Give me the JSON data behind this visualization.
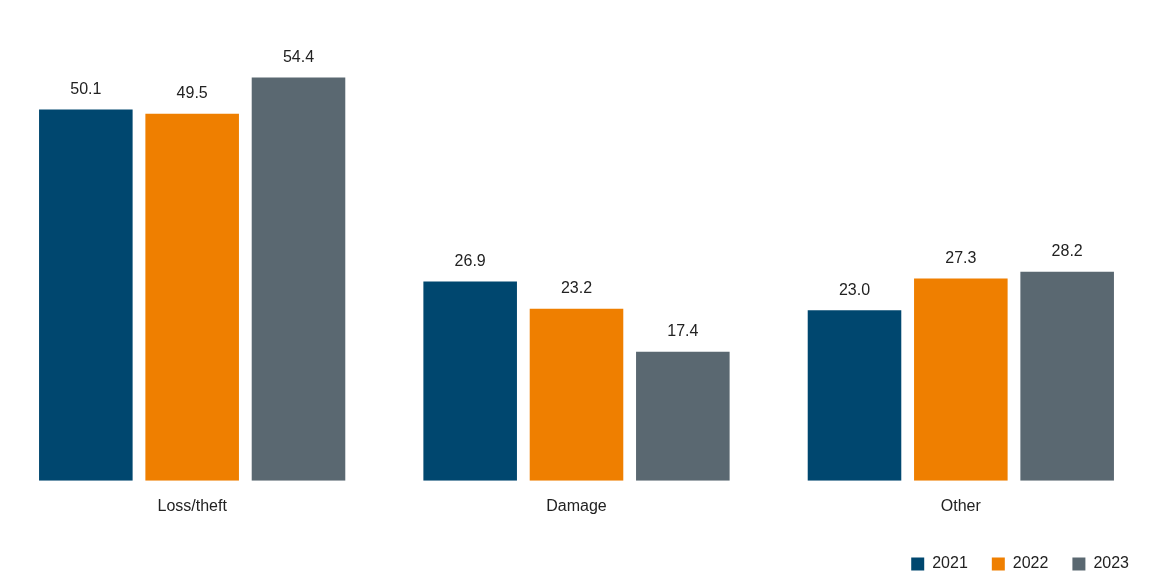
{
  "chart_data": {
    "type": "bar",
    "categories": [
      "Loss/theft",
      "Damage",
      "Other"
    ],
    "series": [
      {
        "name": "2021",
        "color": "#00476f",
        "values": [
          50.1,
          26.9,
          23.0
        ],
        "value_labels": [
          "50.1",
          "26.9",
          "23.0"
        ]
      },
      {
        "name": "2022",
        "color": "#ef7f00",
        "values": [
          49.5,
          23.2,
          27.3
        ],
        "value_labels": [
          "49.5",
          "23.2",
          "27.3"
        ]
      },
      {
        "name": "2023",
        "color": "#5a6871",
        "values": [
          54.4,
          17.4,
          28.2
        ],
        "value_labels": [
          "54.4",
          "17.4",
          "28.2"
        ]
      }
    ],
    "legend": "bottom right",
    "grid": false
  }
}
